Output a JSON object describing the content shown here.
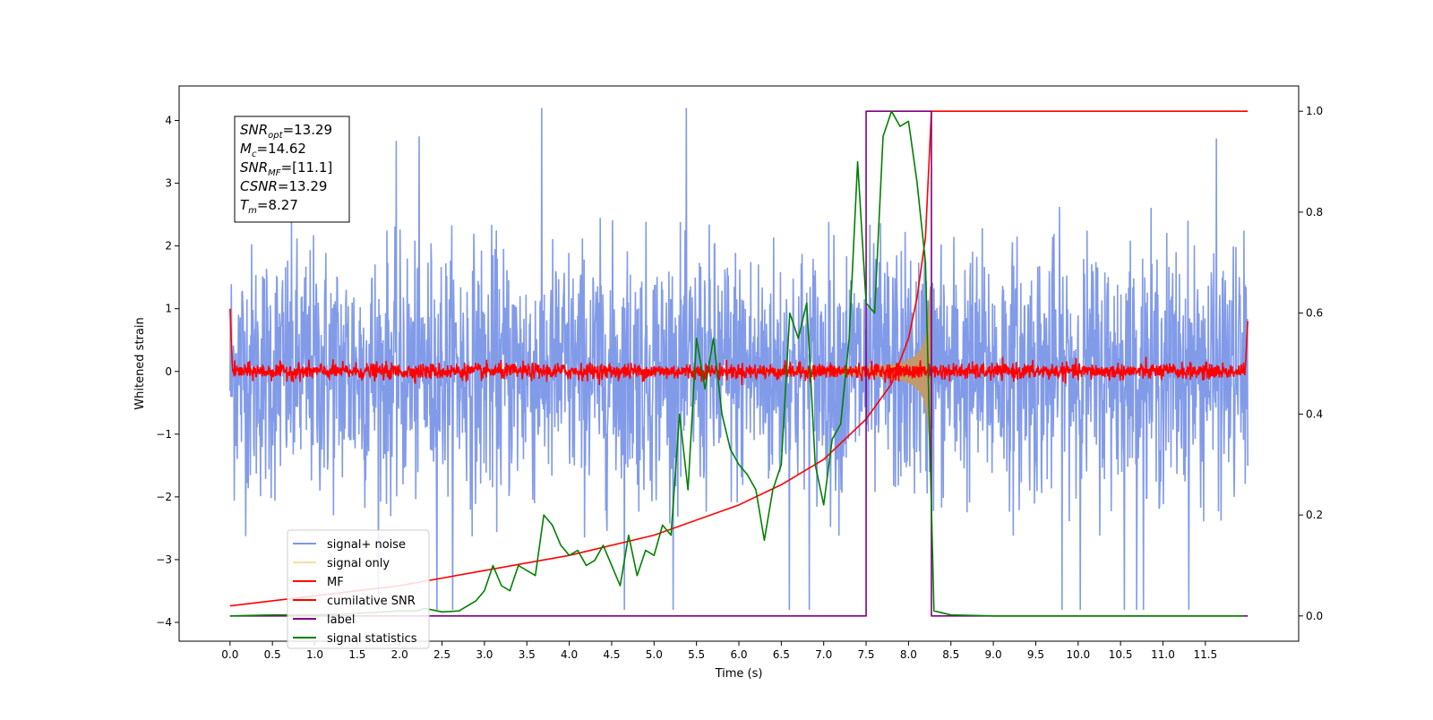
{
  "chart_data": {
    "type": "line",
    "xlabel": "Time (s)",
    "ylabel": "Whitened strain",
    "xlim": [
      -0.6,
      12.6
    ],
    "ylim": [
      -4.3,
      4.55
    ],
    "ylim_right": [
      -0.05,
      1.05
    ],
    "x_ticks": [
      "0.0",
      "0.5",
      "1.0",
      "1.5",
      "2.0",
      "2.5",
      "3.0",
      "3.5",
      "4.0",
      "4.5",
      "5.0",
      "5.5",
      "6.0",
      "6.5",
      "7.0",
      "7.5",
      "8.0",
      "8.5",
      "9.0",
      "9.5",
      "10.0",
      "10.5",
      "11.0",
      "11.5"
    ],
    "y_ticks_left": [
      "−4",
      "−3",
      "−2",
      "−1",
      "0",
      "1",
      "2",
      "3",
      "4"
    ],
    "y_ticks_right": [
      "0.0",
      "0.2",
      "0.4",
      "0.6",
      "0.8",
      "1.0"
    ],
    "grid": false,
    "legend_position": "lower-left",
    "annotation": {
      "lines": [
        {
          "sym": "SNR",
          "sub": "opt",
          "value": "=13.29"
        },
        {
          "sym": "M",
          "sub": "c",
          "value": "=14.62"
        },
        {
          "sym": "SNR",
          "sub": "MF",
          "value": "=[11.1]"
        },
        {
          "sym": "CSNR",
          "sub": "",
          "value": "=13.29"
        },
        {
          "sym": "T",
          "sub": "m",
          "value": "=8.27"
        }
      ]
    },
    "series": [
      {
        "name": "signal+ noise",
        "color": "#7b96e8",
        "axis": "left",
        "description": "whitened noise ±2.5 over 0–12 s"
      },
      {
        "name": "signal only",
        "color": "#f5d58a",
        "axis": "left",
        "description": "chirp envelope growing to ±1.3 near 8.25 s"
      },
      {
        "name": "MF",
        "color": "#ff0000",
        "axis": "left",
        "description": "matched filter output around 0"
      },
      {
        "name": "cumilative SNR",
        "color": "#ff0000",
        "axis": "right",
        "x": [
          0.0,
          1.0,
          2.0,
          3.0,
          4.0,
          5.0,
          6.0,
          6.5,
          7.0,
          7.5,
          7.8,
          8.0,
          8.1,
          8.2,
          8.27,
          8.3,
          12.0
        ],
        "values": [
          0.02,
          0.04,
          0.06,
          0.09,
          0.12,
          0.16,
          0.22,
          0.26,
          0.31,
          0.39,
          0.46,
          0.55,
          0.63,
          0.75,
          1.0,
          1.0,
          1.0
        ]
      },
      {
        "name": "label",
        "color": "#800080",
        "axis": "right",
        "x": [
          0.0,
          7.5,
          7.5,
          8.27,
          8.27,
          12.0
        ],
        "values": [
          0.0,
          0.0,
          1.0,
          1.0,
          0.0,
          0.0
        ]
      },
      {
        "name": "signal statistics",
        "color": "#008000",
        "axis": "right",
        "x": [
          0.0,
          0.5,
          1.0,
          1.5,
          2.0,
          2.2,
          2.3,
          2.5,
          2.7,
          2.9,
          3.0,
          3.1,
          3.2,
          3.3,
          3.4,
          3.5,
          3.6,
          3.7,
          3.8,
          3.9,
          4.0,
          4.1,
          4.2,
          4.3,
          4.4,
          4.5,
          4.6,
          4.7,
          4.8,
          4.9,
          5.0,
          5.1,
          5.2,
          5.3,
          5.4,
          5.5,
          5.6,
          5.7,
          5.8,
          5.9,
          6.0,
          6.1,
          6.2,
          6.3,
          6.4,
          6.5,
          6.6,
          6.7,
          6.8,
          6.9,
          7.0,
          7.1,
          7.2,
          7.3,
          7.4,
          7.5,
          7.6,
          7.7,
          7.8,
          7.9,
          8.0,
          8.1,
          8.2,
          8.3,
          8.5,
          9.0,
          10.0,
          11.0,
          11.95
        ],
        "values": [
          0.0,
          0.002,
          0.002,
          0.005,
          0.01,
          0.01,
          0.015,
          0.008,
          0.01,
          0.03,
          0.05,
          0.1,
          0.06,
          0.05,
          0.1,
          0.09,
          0.08,
          0.2,
          0.18,
          0.14,
          0.12,
          0.13,
          0.1,
          0.11,
          0.14,
          0.1,
          0.06,
          0.16,
          0.08,
          0.13,
          0.12,
          0.18,
          0.16,
          0.4,
          0.25,
          0.55,
          0.45,
          0.55,
          0.4,
          0.33,
          0.3,
          0.28,
          0.25,
          0.15,
          0.25,
          0.3,
          0.6,
          0.55,
          0.62,
          0.3,
          0.22,
          0.35,
          0.38,
          0.55,
          0.9,
          0.62,
          0.6,
          0.95,
          1.0,
          0.97,
          0.98,
          0.86,
          0.7,
          0.01,
          0.002,
          0.0,
          0.0,
          0.0,
          0.0
        ]
      }
    ]
  }
}
